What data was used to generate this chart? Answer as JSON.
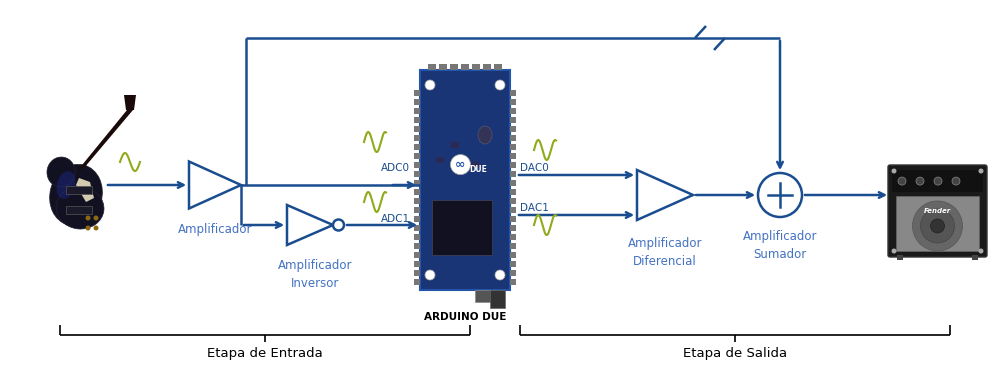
{
  "blue": "#1a4d8f",
  "dark_blue": "#1a3575",
  "green": "#8faa1a",
  "label_blue": "#4472c4",
  "bg": "#ffffff",
  "title_arduino": "ARDUINO DUE",
  "label_amplificador": "Amplificador",
  "label_amp_inversor1": "Amplificador",
  "label_amp_inversor2": "Inversor",
  "label_amp_diferencial1": "Amplificador",
  "label_amp_diferencial2": "Diferencial",
  "label_amp_sumador1": "Amplificador",
  "label_amp_sumador2": "Sumador",
  "label_etapa_entrada": "Etapa de Entrada",
  "label_etapa_salida": "Etapa de Salida",
  "label_adc0": "ADC0",
  "label_adc1": "ADC1",
  "label_dac0": "DAC0",
  "label_dac1": "DAC1",
  "board_blue": "#1a3a6a",
  "board_dark": "#0a1a3a"
}
